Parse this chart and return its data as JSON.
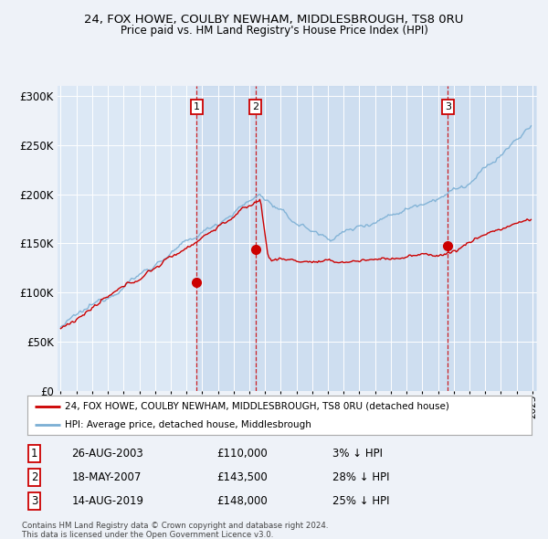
{
  "title1": "24, FOX HOWE, COULBY NEWHAM, MIDDLESBROUGH, TS8 0RU",
  "title2": "Price paid vs. HM Land Registry's House Price Index (HPI)",
  "ylim": [
    0,
    310000
  ],
  "yticks": [
    0,
    50000,
    100000,
    150000,
    200000,
    250000,
    300000
  ],
  "ytick_labels": [
    "£0",
    "£50K",
    "£100K",
    "£150K",
    "£200K",
    "£250K",
    "£300K"
  ],
  "bg_color": "#eef2f8",
  "plot_bg": "#dce8f5",
  "sale_dates_num": [
    2003.65,
    2007.38,
    2019.62
  ],
  "sale_prices": [
    110000,
    143500,
    148000
  ],
  "sale_labels": [
    "1",
    "2",
    "3"
  ],
  "legend_line1": "24, FOX HOWE, COULBY NEWHAM, MIDDLESBROUGH, TS8 0RU (detached house)",
  "legend_line2": "HPI: Average price, detached house, Middlesbrough",
  "table_rows": [
    [
      "1",
      "26-AUG-2003",
      "£110,000",
      "3% ↓ HPI"
    ],
    [
      "2",
      "18-MAY-2007",
      "£143,500",
      "28% ↓ HPI"
    ],
    [
      "3",
      "14-AUG-2019",
      "£148,000",
      "25% ↓ HPI"
    ]
  ],
  "footer": "Contains HM Land Registry data © Crown copyright and database right 2024.\nThis data is licensed under the Open Government Licence v3.0.",
  "red_color": "#cc0000",
  "blue_color": "#7bafd4"
}
